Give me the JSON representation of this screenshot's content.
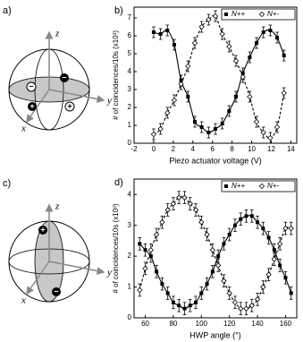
{
  "chart_data": [
    {
      "type": "scatter",
      "panel": "b)",
      "xlabel": "Piezo actuator voltage (V)",
      "ylabel": "# of coincidences/10s (x10³)",
      "xlim": [
        -2,
        14.6
      ],
      "xticks": [
        -2,
        0,
        2,
        4,
        6,
        8,
        10,
        12,
        14
      ],
      "ylim": [
        0,
        7.6
      ],
      "yticks": [
        0,
        1,
        2,
        3,
        4,
        5,
        6,
        7
      ],
      "legend": "top-right",
      "series": [
        {
          "name": "N++",
          "color": "#000000",
          "marker": "square",
          "line_style": "solid",
          "error": 0.3,
          "x": [
            0,
            0.7,
            1.4,
            2.1,
            2.8,
            3.5,
            4.2,
            4.9,
            5.6,
            6.3,
            7.0,
            7.7,
            8.4,
            9.1,
            9.8,
            10.5,
            11.2,
            11.9,
            12.6,
            13.3
          ],
          "values": [
            6.2,
            6.1,
            6.3,
            5.5,
            3.5,
            2.6,
            1.2,
            0.9,
            0.6,
            0.8,
            1.1,
            1.8,
            2.6,
            3.9,
            4.8,
            5.6,
            6.2,
            6.3,
            5.9,
            4.9
          ]
        },
        {
          "name": "N+-",
          "color": "#000000",
          "marker": "diamond",
          "line_style": "dashed",
          "error": 0.3,
          "x": [
            0,
            0.7,
            1.4,
            2.1,
            2.8,
            3.5,
            4.2,
            4.9,
            5.6,
            6.3,
            7.0,
            7.7,
            8.4,
            9.1,
            9.8,
            10.5,
            11.2,
            11.9,
            12.6,
            13.3
          ],
          "values": [
            0.5,
            0.8,
            1.7,
            2.4,
            3.3,
            4.3,
            5.6,
            6.5,
            6.9,
            7.1,
            6.1,
            5.4,
            4.6,
            3.7,
            2.6,
            1.2,
            0.6,
            0.3,
            0.9,
            2.8
          ]
        }
      ]
    },
    {
      "type": "scatter",
      "panel": "d)",
      "xlabel": "HWP angle (°)",
      "ylabel": "# of coincidences/10s (x10³)",
      "xlim": [
        52,
        168
      ],
      "xticks": [
        60,
        80,
        100,
        120,
        140,
        160
      ],
      "ylim": [
        0,
        4.5
      ],
      "yticks": [
        0,
        1,
        2,
        3,
        4
      ],
      "legend": "top-right",
      "series": [
        {
          "name": "N++",
          "color": "#000000",
          "marker": "square",
          "line_style": "solid",
          "error": 0.2,
          "x": [
            56,
            60,
            64,
            68,
            72,
            76,
            80,
            84,
            88,
            92,
            96,
            100,
            104,
            108,
            112,
            116,
            120,
            124,
            128,
            132,
            136,
            140,
            144,
            148,
            152,
            156,
            160,
            164
          ],
          "values": [
            2.4,
            2.2,
            2.0,
            1.5,
            1.1,
            0.8,
            0.5,
            0.4,
            0.3,
            0.4,
            0.5,
            0.8,
            1.1,
            1.5,
            2.0,
            2.4,
            2.7,
            3.0,
            3.2,
            3.3,
            3.3,
            3.1,
            2.9,
            2.6,
            2.2,
            1.7,
            1.3,
            0.8
          ]
        },
        {
          "name": "N+-",
          "color": "#000000",
          "marker": "diamond",
          "line_style": "dashed",
          "error": 0.2,
          "x": [
            56,
            60,
            64,
            68,
            72,
            76,
            80,
            84,
            88,
            92,
            96,
            100,
            104,
            108,
            112,
            116,
            120,
            124,
            128,
            132,
            136,
            140,
            144,
            148,
            152,
            156,
            160,
            164
          ],
          "values": [
            0.9,
            1.6,
            2.2,
            2.7,
            3.1,
            3.5,
            3.7,
            3.9,
            3.9,
            3.7,
            3.5,
            3.1,
            2.7,
            2.2,
            1.7,
            1.2,
            0.8,
            0.5,
            0.3,
            0.3,
            0.4,
            0.6,
            1.0,
            1.4,
            1.9,
            2.4,
            2.9,
            2.9
          ]
        }
      ]
    }
  ],
  "diagrams": [
    {
      "panel": "a)",
      "axes": [
        "z",
        "x",
        "y"
      ],
      "signs": [
        "−",
        "−",
        "+",
        "+"
      ]
    },
    {
      "panel": "c)",
      "axes": [
        "z",
        "x",
        "y"
      ],
      "signs": [
        "+",
        "−"
      ]
    }
  ]
}
